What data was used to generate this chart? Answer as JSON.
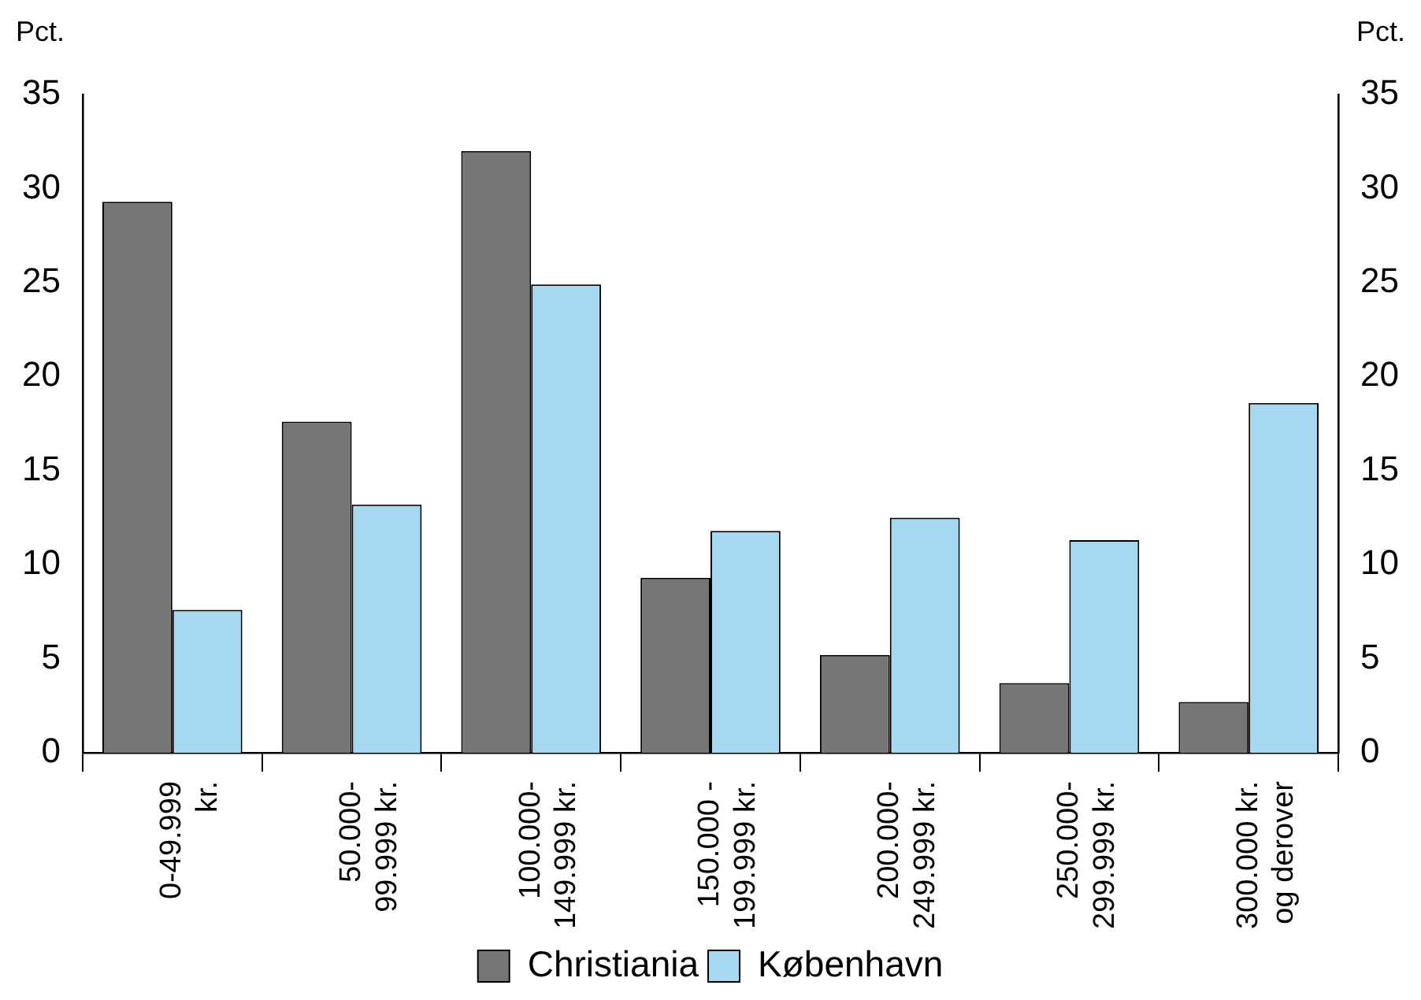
{
  "chart_data": {
    "type": "bar",
    "ylabel": "Pct.",
    "y2label": "Pct.",
    "categories": [
      "0-49.999\nkr.",
      "50.000-\n99.999 kr.",
      "100.000-\n149.999 kr.",
      "150.000 -\n199.999 kr.",
      "200.000-\n249.999 kr.",
      "250.000-\n299.999 kr.",
      "300.000 kr.\nog derover"
    ],
    "series": [
      {
        "name": "Christiania",
        "color": "#767676",
        "values": [
          29.3,
          17.6,
          32,
          9.3,
          5.2,
          3.7,
          2.7
        ]
      },
      {
        "name": "København",
        "color": "#a6d8f2",
        "values": [
          7.6,
          13.2,
          24.9,
          11.8,
          12.5,
          11.3,
          18.6
        ]
      }
    ],
    "ylim": [
      0,
      35
    ],
    "yticks": [
      0,
      5,
      10,
      15,
      20,
      25,
      30,
      35
    ],
    "y2lim": [
      0,
      35
    ],
    "y2ticks": [
      0,
      5,
      10,
      15,
      20,
      25,
      30,
      35
    ],
    "grid": false,
    "legend": "bottom"
  }
}
